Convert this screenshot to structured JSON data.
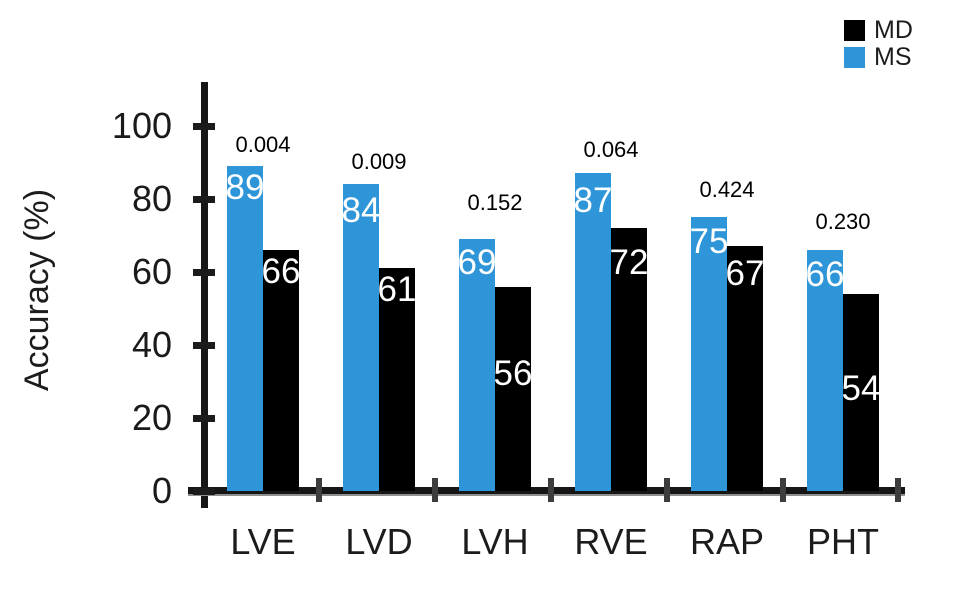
{
  "chart_data": {
    "type": "bar",
    "title": "",
    "categories": [
      "LVE",
      "LVD",
      "LVH",
      "RVE",
      "RAP",
      "PHT"
    ],
    "series": [
      {
        "name": "MS",
        "color": "#2e96d8",
        "values": [
          89,
          84,
          69,
          87,
          75,
          66
        ]
      },
      {
        "name": "MD",
        "color": "#000000",
        "values": [
          66,
          61,
          56,
          72,
          67,
          54
        ]
      }
    ],
    "p_values": [
      "0.004",
      "0.009",
      "0.152",
      "0.064",
      "0.424",
      "0.230"
    ],
    "xlabel": "",
    "ylabel": "Accuracy (%)",
    "yticks": [
      0,
      20,
      40,
      60,
      80,
      100
    ],
    "ylim": [
      0,
      112
    ],
    "grid": false,
    "legend_position": "top-right",
    "value_label_color": "#ffffff",
    "layout_hints": {
      "value_label_top_offsets": {
        "MS": [
          4,
          9,
          6,
          10,
          7,
          7
        ],
        "MD": [
          4,
          4,
          69,
          17,
          10,
          77
        ]
      },
      "p_label_gaps": [
        8,
        9,
        23,
        10,
        14,
        15
      ]
    }
  },
  "legend": {
    "items": [
      {
        "label": "MD",
        "color": "#000000"
      },
      {
        "label": "MS",
        "color": "#2e96d8"
      }
    ]
  }
}
